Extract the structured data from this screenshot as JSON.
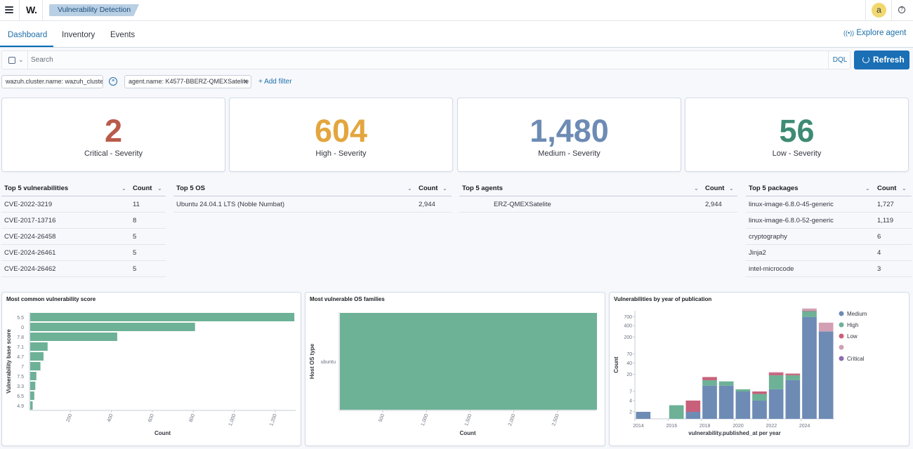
{
  "header": {
    "logo": "W.",
    "breadcrumb": "Vulnerability Detection",
    "avatar_initial": "a",
    "help_glyph": "?"
  },
  "tabs": [
    {
      "label": "Dashboard",
      "active": true
    },
    {
      "label": "Inventory",
      "active": false
    },
    {
      "label": "Events",
      "active": false
    }
  ],
  "explore_agent": "Explore agent",
  "search": {
    "placeholder": "Search",
    "language": "DQL",
    "refresh_label": "Refresh"
  },
  "filters": [
    {
      "label": "wazuh.cluster.name: wazuh_cluster"
    },
    {
      "label": "agent.name: K4577-BBERZ-QMEXSatelite"
    }
  ],
  "add_filter": "+ Add filter",
  "stats": [
    {
      "value": "2",
      "label": "Critical - Severity",
      "color": "#b85b4a"
    },
    {
      "value": "604",
      "label": "High - Severity",
      "color": "#e3a63e"
    },
    {
      "value": "1,480",
      "label": "Medium - Severity",
      "color": "#6d8bb4"
    },
    {
      "value": "56",
      "label": "Low - Severity",
      "color": "#3e8a74"
    }
  ],
  "tables": {
    "vulnerabilities": {
      "title": "Top 5 vulnerabilities",
      "count_label": "Count",
      "rows": [
        [
          "CVE-2022-3219",
          "11"
        ],
        [
          "CVE-2017-13716",
          "8"
        ],
        [
          "CVE-2024-26458",
          "5"
        ],
        [
          "CVE-2024-26461",
          "5"
        ],
        [
          "CVE-2024-26462",
          "5"
        ]
      ]
    },
    "os": {
      "title": "Top 5 OS",
      "count_label": "Count",
      "rows": [
        [
          "Ubuntu 24.04.1 LTS (Noble Numbat)",
          "2,944"
        ]
      ]
    },
    "agents": {
      "title": "Top 5 agents",
      "count_label": "Count",
      "rows": [
        [
          "ERZ-QMEXSatelite",
          "2,944"
        ]
      ]
    },
    "packages": {
      "title": "Top 5 packages",
      "count_label": "Count",
      "rows": [
        [
          "linux-image-6.8.0-45-generic",
          "1,727"
        ],
        [
          "linux-image-6.8.0-52-generic",
          "1,119"
        ],
        [
          "cryptography",
          "6"
        ],
        [
          "Jinja2",
          "4"
        ],
        [
          "intel-microcode",
          "3"
        ]
      ]
    }
  },
  "chart_data": [
    {
      "type": "bar",
      "title": "Most common vulnerability score",
      "orientation": "horizontal",
      "categories": [
        "5.5",
        "0",
        "7.8",
        "7.1",
        "4.7",
        "7",
        "7.5",
        "3.3",
        "6.5",
        "4.9"
      ],
      "values": [
        1290,
        805,
        425,
        85,
        65,
        50,
        30,
        25,
        20,
        12
      ],
      "xlabel": "Count",
      "ylabel": "Vulnerability base score",
      "xticks": [
        "200",
        "400",
        "600",
        "800",
        "1,000",
        "1,200"
      ],
      "xlim": [
        0,
        1300
      ],
      "color": "#6db196"
    },
    {
      "type": "bar",
      "title": "Most vulnerable OS families",
      "orientation": "horizontal",
      "categories": [
        "ubuntu"
      ],
      "values": [
        2944
      ],
      "xlabel": "Count",
      "ylabel": "Host OS type",
      "xticks": [
        "500",
        "1,000",
        "1,500",
        "2,000",
        "2,500"
      ],
      "xlim": [
        0,
        2944
      ],
      "color": "#6db196"
    },
    {
      "type": "bar",
      "stacked": true,
      "title": "Vulnerabilities by year of publication",
      "xlabel": "vulnerability.published_at per year",
      "ylabel": "Count",
      "y_scale": "log",
      "yticks": [
        "2",
        "4",
        "7",
        "20",
        "40",
        "70",
        "200",
        "400",
        "700"
      ],
      "xticks": [
        "2014",
        "2016",
        "2018",
        "2020",
        "2022",
        "2024"
      ],
      "categories": [
        "2014",
        "2015",
        "2016",
        "2017",
        "2018",
        "2019",
        "2020",
        "2021",
        "2022",
        "2023",
        "2024",
        "2025"
      ],
      "legend_position": "right",
      "series": [
        {
          "name": "Medium",
          "color": "#6d8bb4",
          "values": [
            2,
            0,
            1,
            2,
            10,
            10,
            7,
            4,
            8,
            14,
            680,
            280
          ]
        },
        {
          "name": "High",
          "color": "#6db196",
          "values": [
            0,
            0,
            2,
            0,
            4,
            3,
            1,
            2,
            11,
            5,
            300,
            2
          ]
        },
        {
          "name": "Low",
          "color": "#c8607a",
          "values": [
            0,
            0,
            0,
            2,
            3,
            0,
            0,
            1,
            3,
            2,
            20,
            0
          ]
        },
        {
          "name": "",
          "color": "#d39fb3",
          "values": [
            0,
            0,
            0,
            0,
            0,
            0,
            0,
            0,
            1,
            0,
            150,
            200
          ]
        },
        {
          "name": "Critical",
          "color": "#8e6bb0",
          "values": [
            0,
            0,
            0,
            0,
            0,
            0,
            0,
            0,
            0,
            0,
            0,
            0
          ]
        }
      ]
    }
  ]
}
